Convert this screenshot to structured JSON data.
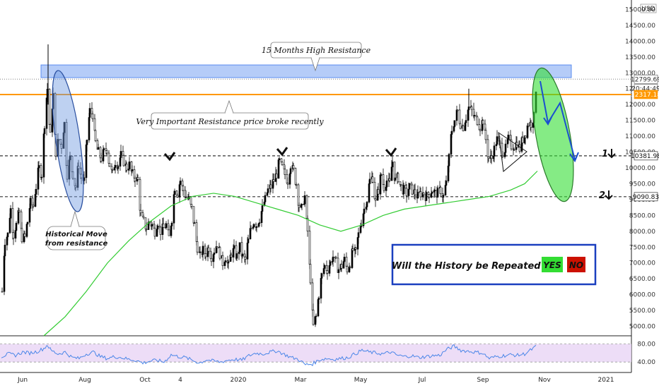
{
  "chart_data": {
    "type": "candlestick",
    "currency": "USD",
    "x_ticks": [
      "Jun",
      "Aug",
      "Oct",
      "4",
      "2020",
      "Mar",
      "May",
      "Jul",
      "Sep",
      "Nov",
      "2021"
    ],
    "y_ticks": [
      5000,
      5500,
      6000,
      6500,
      7000,
      7500,
      8000,
      8500,
      9000,
      9500,
      10000,
      10500,
      11000,
      11500,
      12000,
      12500,
      13000,
      13500,
      14000,
      14500,
      15000
    ],
    "ylim": [
      4700,
      15300
    ],
    "price_labels": [
      {
        "value": 12799.69,
        "label": "12799.69",
        "bg": "#ffffff",
        "fg": "#333333",
        "border": "#666666"
      },
      {
        "value": 12500,
        "label": "20:44:49",
        "bg": "#ffffff",
        "fg": "#333333",
        "border": "#666666"
      },
      {
        "value": 12317.18,
        "label": "12317.18",
        "bg": "#ff9800",
        "fg": "#ffffff",
        "border": "#ff9800"
      },
      {
        "value": 10381.98,
        "label": "10381.98",
        "bg": "#ffffff",
        "fg": "#111111",
        "border": "#333333"
      },
      {
        "value": 9090.83,
        "label": "9090.83",
        "bg": "#ffffff",
        "fg": "#111111",
        "border": "#333333"
      }
    ],
    "close_series": [
      [
        0,
        6100
      ],
      [
        4,
        7700
      ],
      [
        8,
        7900
      ],
      [
        12,
        8700
      ],
      [
        16,
        7900
      ],
      [
        20,
        8200
      ],
      [
        24,
        8600
      ],
      [
        28,
        7800
      ],
      [
        32,
        7800
      ],
      [
        36,
        8300
      ],
      [
        40,
        8900
      ],
      [
        44,
        8800
      ],
      [
        48,
        9400
      ],
      [
        52,
        10000
      ],
      [
        56,
        9800
      ],
      [
        60,
        11400
      ],
      [
        64,
        12500
      ],
      [
        68,
        11000
      ],
      [
        72,
        12300
      ],
      [
        76,
        10500
      ],
      [
        80,
        10900
      ],
      [
        84,
        10700
      ],
      [
        88,
        11400
      ],
      [
        92,
        9800
      ],
      [
        96,
        10300
      ],
      [
        100,
        9800
      ],
      [
        104,
        9400
      ],
      [
        108,
        10100
      ],
      [
        112,
        9700
      ],
      [
        116,
        9600
      ],
      [
        120,
        10900
      ],
      [
        124,
        11800
      ],
      [
        128,
        11700
      ],
      [
        132,
        10800
      ],
      [
        136,
        10500
      ],
      [
        140,
        10300
      ],
      [
        144,
        10500
      ],
      [
        148,
        10600
      ],
      [
        152,
        10100
      ],
      [
        156,
        9800
      ],
      [
        160,
        10200
      ],
      [
        164,
        10100
      ],
      [
        168,
        10400
      ],
      [
        172,
        10200
      ],
      [
        176,
        10000
      ],
      [
        180,
        10100
      ],
      [
        184,
        9800
      ],
      [
        188,
        9700
      ],
      [
        192,
        9600
      ],
      [
        196,
        8500
      ],
      [
        200,
        8300
      ],
      [
        204,
        8100
      ],
      [
        208,
        8300
      ],
      [
        212,
        8200
      ],
      [
        216,
        8000
      ],
      [
        220,
        8300
      ],
      [
        224,
        8000
      ],
      [
        228,
        8100
      ],
      [
        232,
        8200
      ],
      [
        236,
        7800
      ],
      [
        240,
        8400
      ],
      [
        244,
        9400
      ],
      [
        248,
        9200
      ],
      [
        252,
        9600
      ],
      [
        256,
        9300
      ],
      [
        260,
        9100
      ],
      [
        264,
        9000
      ],
      [
        268,
        8700
      ],
      [
        272,
        8200
      ],
      [
        276,
        7500
      ],
      [
        280,
        7200
      ],
      [
        284,
        7400
      ],
      [
        288,
        7300
      ],
      [
        292,
        7500
      ],
      [
        296,
        7200
      ],
      [
        300,
        7400
      ],
      [
        304,
        7600
      ],
      [
        308,
        7300
      ],
      [
        312,
        7000
      ],
      [
        316,
        7200
      ],
      [
        320,
        6900
      ],
      [
        324,
        7300
      ],
      [
        328,
        7400
      ],
      [
        332,
        7200
      ],
      [
        336,
        7500
      ],
      [
        340,
        7200
      ],
      [
        344,
        7100
      ],
      [
        348,
        7700
      ],
      [
        352,
        8100
      ],
      [
        356,
        8300
      ],
      [
        360,
        8200
      ],
      [
        364,
        8400
      ],
      [
        368,
        8700
      ],
      [
        372,
        9000
      ],
      [
        376,
        9300
      ],
      [
        380,
        9400
      ],
      [
        384,
        9600
      ],
      [
        388,
        9800
      ],
      [
        392,
        10200
      ],
      [
        396,
        10000
      ],
      [
        400,
        9800
      ],
      [
        404,
        9600
      ],
      [
        408,
        10100
      ],
      [
        412,
        9900
      ],
      [
        416,
        9500
      ],
      [
        420,
        8800
      ],
      [
        424,
        8700
      ],
      [
        428,
        9100
      ],
      [
        432,
        8000
      ],
      [
        436,
        6500
      ],
      [
        440,
        5000
      ],
      [
        444,
        5300
      ],
      [
        448,
        6000
      ],
      [
        452,
        6600
      ],
      [
        456,
        6900
      ],
      [
        460,
        6800
      ],
      [
        464,
        7000
      ],
      [
        468,
        7200
      ],
      [
        472,
        7000
      ],
      [
        476,
        6800
      ],
      [
        480,
        6900
      ],
      [
        484,
        7100
      ],
      [
        488,
        6800
      ],
      [
        492,
        7000
      ],
      [
        496,
        7400
      ],
      [
        500,
        7300
      ],
      [
        504,
        7900
      ],
      [
        508,
        8300
      ],
      [
        512,
        8700
      ],
      [
        516,
        9000
      ],
      [
        520,
        9600
      ],
      [
        524,
        9700
      ],
      [
        528,
        8900
      ],
      [
        532,
        9300
      ],
      [
        536,
        9800
      ],
      [
        540,
        9400
      ],
      [
        544,
        9600
      ],
      [
        548,
        9500
      ],
      [
        552,
        10200
      ],
      [
        556,
        9600
      ],
      [
        560,
        9700
      ],
      [
        564,
        9400
      ],
      [
        568,
        9300
      ],
      [
        572,
        9200
      ],
      [
        576,
        9400
      ],
      [
        580,
        9300
      ],
      [
        584,
        9200
      ],
      [
        588,
        9100
      ],
      [
        592,
        9200
      ],
      [
        596,
        9200
      ],
      [
        600,
        9100
      ],
      [
        604,
        9200
      ],
      [
        608,
        9300
      ],
      [
        612,
        9200
      ],
      [
        616,
        9200
      ],
      [
        620,
        9300
      ],
      [
        624,
        9100
      ],
      [
        628,
        9500
      ],
      [
        632,
        10300
      ],
      [
        636,
        11200
      ],
      [
        640,
        11500
      ],
      [
        644,
        11800
      ],
      [
        648,
        11400
      ],
      [
        652,
        11300
      ],
      [
        656,
        11600
      ],
      [
        660,
        11900
      ],
      [
        664,
        11800
      ],
      [
        668,
        11600
      ],
      [
        672,
        11500
      ],
      [
        676,
        11300
      ],
      [
        680,
        11500
      ],
      [
        684,
        10900
      ],
      [
        688,
        10300
      ],
      [
        692,
        10300
      ],
      [
        696,
        10600
      ],
      [
        700,
        10900
      ],
      [
        704,
        10700
      ],
      [
        708,
        10500
      ],
      [
        712,
        10600
      ],
      [
        716,
        10900
      ],
      [
        720,
        10700
      ],
      [
        724,
        10700
      ],
      [
        728,
        10800
      ],
      [
        732,
        10600
      ],
      [
        736,
        10900
      ],
      [
        740,
        11100
      ],
      [
        744,
        11400
      ],
      [
        748,
        11400
      ],
      [
        752,
        11600
      ],
      [
        756,
        12800
      ]
    ],
    "ma_series": [
      [
        60,
        4700
      ],
      [
        90,
        5300
      ],
      [
        120,
        6100
      ],
      [
        150,
        7000
      ],
      [
        180,
        7700
      ],
      [
        210,
        8300
      ],
      [
        240,
        8800
      ],
      [
        270,
        9100
      ],
      [
        300,
        9200
      ],
      [
        330,
        9100
      ],
      [
        360,
        8900
      ],
      [
        390,
        8700
      ],
      [
        420,
        8500
      ],
      [
        450,
        8200
      ],
      [
        480,
        8000
      ],
      [
        510,
        8200
      ],
      [
        540,
        8500
      ],
      [
        570,
        8700
      ],
      [
        600,
        8800
      ],
      [
        630,
        8900
      ],
      [
        660,
        9000
      ],
      [
        690,
        9100
      ],
      [
        720,
        9300
      ],
      [
        740,
        9500
      ],
      [
        758,
        9900
      ]
    ],
    "rsi_series": [
      [
        0,
        52
      ],
      [
        10,
        58
      ],
      [
        20,
        55
      ],
      [
        30,
        62
      ],
      [
        40,
        60
      ],
      [
        50,
        63
      ],
      [
        60,
        70
      ],
      [
        65,
        78
      ],
      [
        70,
        66
      ],
      [
        80,
        58
      ],
      [
        90,
        62
      ],
      [
        100,
        50
      ],
      [
        110,
        48
      ],
      [
        120,
        58
      ],
      [
        130,
        62
      ],
      [
        140,
        52
      ],
      [
        150,
        48
      ],
      [
        160,
        52
      ],
      [
        170,
        50
      ],
      [
        180,
        46
      ],
      [
        190,
        44
      ],
      [
        200,
        38
      ],
      [
        210,
        42
      ],
      [
        220,
        44
      ],
      [
        230,
        40
      ],
      [
        240,
        56
      ],
      [
        250,
        52
      ],
      [
        260,
        50
      ],
      [
        270,
        44
      ],
      [
        280,
        38
      ],
      [
        290,
        45
      ],
      [
        300,
        42
      ],
      [
        310,
        40
      ],
      [
        320,
        44
      ],
      [
        330,
        46
      ],
      [
        340,
        44
      ],
      [
        350,
        54
      ],
      [
        360,
        60
      ],
      [
        370,
        58
      ],
      [
        380,
        62
      ],
      [
        390,
        65
      ],
      [
        400,
        57
      ],
      [
        410,
        50
      ],
      [
        420,
        46
      ],
      [
        430,
        34
      ],
      [
        440,
        36
      ],
      [
        450,
        45
      ],
      [
        460,
        48
      ],
      [
        470,
        46
      ],
      [
        480,
        48
      ],
      [
        490,
        50
      ],
      [
        500,
        58
      ],
      [
        510,
        66
      ],
      [
        520,
        62
      ],
      [
        530,
        60
      ],
      [
        540,
        58
      ],
      [
        550,
        62
      ],
      [
        560,
        55
      ],
      [
        570,
        52
      ],
      [
        580,
        54
      ],
      [
        590,
        50
      ],
      [
        600,
        52
      ],
      [
        610,
        54
      ],
      [
        620,
        55
      ],
      [
        630,
        68
      ],
      [
        640,
        75
      ],
      [
        650,
        66
      ],
      [
        660,
        64
      ],
      [
        670,
        62
      ],
      [
        680,
        60
      ],
      [
        690,
        48
      ],
      [
        700,
        52
      ],
      [
        710,
        54
      ],
      [
        720,
        56
      ],
      [
        730,
        55
      ],
      [
        740,
        58
      ],
      [
        750,
        68
      ],
      [
        758,
        76
      ]
    ],
    "rsi_ticks": [
      80.0,
      40.0
    ],
    "rsi_tick_labels": [
      "80.00",
      "40.00"
    ],
    "levels": [
      {
        "value": 12317.18,
        "color": "#ff9800",
        "style": "solid"
      },
      {
        "value": 12799.69,
        "color": "#999999",
        "style": "dotted"
      },
      {
        "value": 10381.98,
        "color": "#333333",
        "style": "dashed"
      },
      {
        "value": 9090.83,
        "color": "#333333",
        "style": "dashed"
      }
    ],
    "resistance_zone": [
      12850,
      13250
    ],
    "annotations": {
      "resistance_15m": "15 Months High Resistance",
      "important_resistance": "Very Important Resistance price broke recently",
      "historical_move": [
        "Historical Move",
        "from resistance"
      ],
      "question": "Will the History be Repeated?",
      "yes": "YES",
      "no": "NO",
      "target1": "1",
      "target2": "2"
    },
    "colors": {
      "up": "#000000",
      "down": "#ffffff",
      "resistance_zone": "#5b8def",
      "orange": "#ff9800",
      "ma": "#33cc33",
      "rsi": "#4a86e8",
      "rsi_band": "#e9d5f5",
      "ellipse_left": "#6e98e0",
      "ellipse_right": "#33dd33",
      "question_border": "#1a3fbf",
      "yes_bg": "#33dd33",
      "no_bg": "#cc1100",
      "arrow": "#1a4fd0"
    }
  }
}
